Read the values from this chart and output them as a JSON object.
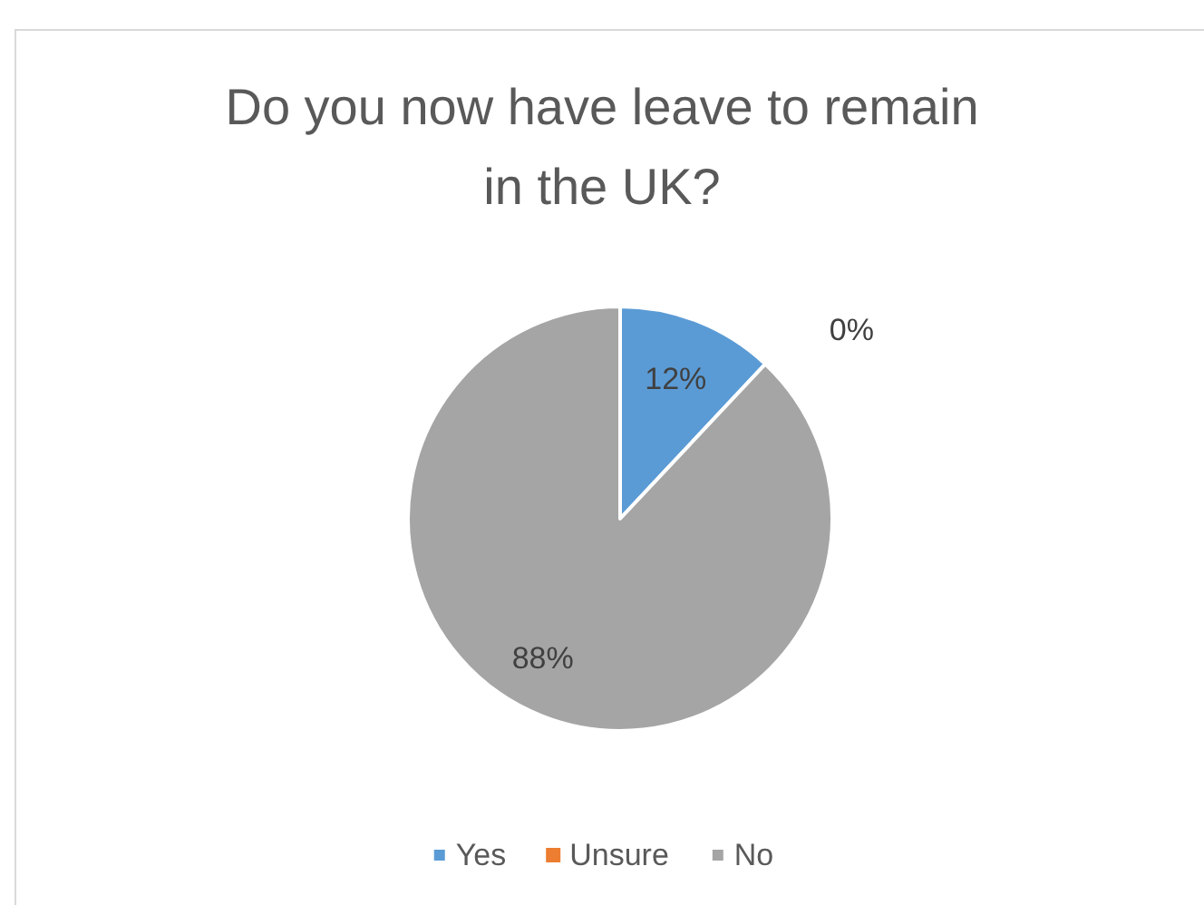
{
  "chart_data": {
    "type": "pie",
    "title": "Do you now have leave to remain\nin the UK?",
    "categories": [
      "Yes",
      "Unsure",
      "No"
    ],
    "values": [
      12,
      0,
      88
    ],
    "colors": [
      "#5b9bd5",
      "#ed7d31",
      "#a5a5a5"
    ],
    "value_labels": [
      "12%",
      "0%",
      "88%"
    ],
    "legend": "bottom"
  }
}
